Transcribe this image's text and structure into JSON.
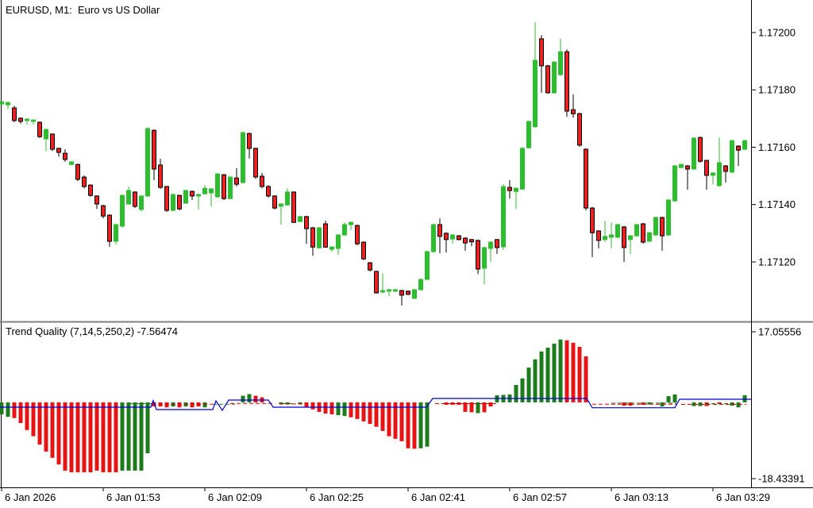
{
  "colors": {
    "background": "#FFFFFF",
    "candle_up": "#2DBE2D",
    "candle_down": "#E62222",
    "candle_border": "#000000",
    "wick_down": "#000000",
    "hist_up": "#1C7C1C",
    "hist_down": "#E61414",
    "line_blue": "#0000D8",
    "line_red": "#DD0000",
    "line_green": "#1C7C1C",
    "axis": "#000000",
    "separator": "#808080"
  },
  "chart_data": [
    {
      "type": "candlestick",
      "title": "EURUSD, M1:  Euro vs US Dollar",
      "symbol": "EURUSD",
      "timeframe": "M1",
      "description": "Euro vs US Dollar",
      "y_ticks": [
        "1.17200",
        "1.17180",
        "1.17160",
        "1.17140",
        "1.17120"
      ],
      "x_labels": [
        "6 Jan 2026",
        "6 Jan 01:53",
        "6 Jan 02:09",
        "6 Jan 02:25",
        "6 Jan 02:41",
        "6 Jan 02:57",
        "6 Jan 03:13",
        "6 Jan 03:29"
      ],
      "grid": false,
      "candles": [
        [
          1.171751,
          1.171762,
          1.171745,
          1.171759
        ],
        [
          1.171748,
          1.171759,
          1.171734,
          1.171756
        ],
        [
          1.171737,
          1.171745,
          1.171687,
          1.171693
        ],
        [
          1.171701,
          1.171704,
          1.171682,
          1.17169
        ],
        [
          1.171693,
          1.171701,
          1.171679,
          1.171698
        ],
        [
          1.17169,
          1.171698,
          1.171679,
          1.171695
        ],
        [
          1.171687,
          1.17169,
          1.171632,
          1.171637
        ],
        [
          1.171629,
          1.171665,
          1.171587,
          1.171662
        ],
        [
          1.171646,
          1.171648,
          1.171587,
          1.171593
        ],
        [
          1.171596,
          1.171598,
          1.171568,
          1.171582
        ],
        [
          1.171579,
          1.171593,
          1.171549,
          1.171557
        ],
        [
          1.17154,
          1.171551,
          1.171537,
          1.171549
        ],
        [
          1.17154,
          1.171543,
          1.171482,
          1.171488
        ],
        [
          1.171496,
          1.171502,
          1.171457,
          1.171463
        ],
        [
          1.171468,
          1.171471,
          1.171427,
          1.171432
        ],
        [
          1.17143,
          1.171432,
          1.171385,
          1.171402
        ],
        [
          1.171396,
          1.171399,
          1.171352,
          1.17136
        ],
        [
          1.171363,
          1.171366,
          1.171253,
          1.171272
        ],
        [
          1.171272,
          1.171333,
          1.171261,
          1.17133
        ],
        [
          1.171325,
          1.171435,
          1.17132,
          1.171432
        ],
        [
          1.171402,
          1.171463,
          1.171399,
          1.171449
        ],
        [
          1.171444,
          1.171446,
          1.171388,
          1.171394
        ],
        [
          1.171383,
          1.171432,
          1.171377,
          1.17143
        ],
        [
          1.17143,
          1.17167,
          1.171427,
          1.171665
        ],
        [
          1.171659,
          1.171662,
          1.171485,
          1.171524
        ],
        [
          1.171538,
          1.17156,
          1.171455,
          1.17146
        ],
        [
          1.171463,
          1.171465,
          1.171374,
          1.17138
        ],
        [
          1.17138,
          1.171438,
          1.171377,
          1.171435
        ],
        [
          1.171432,
          1.171435,
          1.17138,
          1.171385
        ],
        [
          1.171405,
          1.171452,
          1.171402,
          1.171449
        ],
        [
          1.171446,
          1.171449,
          1.171416,
          1.17143
        ],
        [
          1.17143,
          1.171438,
          1.171383,
          1.171435
        ],
        [
          1.171438,
          1.171468,
          1.171435,
          1.171457
        ],
        [
          1.171441,
          1.171457,
          1.171394,
          1.171455
        ],
        [
          1.171427,
          1.17151,
          1.171424,
          1.171507
        ],
        [
          1.171504,
          1.171507,
          1.171416,
          1.171421
        ],
        [
          1.171421,
          1.171499,
          1.171419,
          1.171496
        ],
        [
          1.171493,
          1.171527,
          1.171463,
          1.171471
        ],
        [
          1.171477,
          1.171654,
          1.171474,
          1.171651
        ],
        [
          1.171648,
          1.171651,
          1.17156,
          1.171596
        ],
        [
          1.171596,
          1.171598,
          1.17149,
          1.171496
        ],
        [
          1.171499,
          1.17151,
          1.171457,
          1.171463
        ],
        [
          1.171463,
          1.171468,
          1.171424,
          1.17143
        ],
        [
          1.17143,
          1.171432,
          1.171383,
          1.171388
        ],
        [
          1.171394,
          1.171405,
          1.17133,
          1.171402
        ],
        [
          1.171399,
          1.171457,
          1.171396,
          1.171444
        ],
        [
          1.171444,
          1.171446,
          1.171336,
          1.171338
        ],
        [
          1.171341,
          1.171361,
          1.171338,
          1.171358
        ],
        [
          1.171358,
          1.171361,
          1.171263,
          1.171316
        ],
        [
          1.171319,
          1.171322,
          1.171222,
          1.171252
        ],
        [
          1.171249,
          1.171322,
          1.171247,
          1.171319
        ],
        [
          1.171333,
          1.171344,
          1.171249,
          1.171252
        ],
        [
          1.171244,
          1.171255,
          1.171236,
          1.171252
        ],
        [
          1.171247,
          1.171297,
          1.171225,
          1.171294
        ],
        [
          1.171294,
          1.171338,
          1.171291,
          1.17133
        ],
        [
          1.17133,
          1.171341,
          1.171311,
          1.171338
        ],
        [
          1.171327,
          1.17133,
          1.171258,
          1.171263
        ],
        [
          1.171269,
          1.171272,
          1.171206,
          1.171211
        ],
        [
          1.171197,
          1.1712,
          1.171167,
          1.171172
        ],
        [
          1.171167,
          1.171169,
          1.17109,
          1.171092
        ],
        [
          1.171095,
          1.171161,
          1.17109,
          1.1711
        ],
        [
          1.171098,
          1.171106,
          1.171081,
          1.171103
        ],
        [
          1.171098,
          1.171106,
          1.171095,
          1.171103
        ],
        [
          1.1711,
          1.171103,
          1.171048,
          1.171084
        ],
        [
          1.171098,
          1.1711,
          1.171084,
          1.171087
        ],
        [
          1.171073,
          1.171106,
          1.17107,
          1.171103
        ],
        [
          1.171103,
          1.171142,
          1.1711,
          1.171139
        ],
        [
          1.171139,
          1.171239,
          1.171136,
          1.171236
        ],
        [
          1.171236,
          1.171333,
          1.171233,
          1.17133
        ],
        [
          1.17133,
          1.171352,
          1.17123,
          1.171289
        ],
        [
          1.1713,
          1.171303,
          1.171233,
          1.171278
        ],
        [
          1.17128,
          1.171297,
          1.171264,
          1.171294
        ],
        [
          1.171291,
          1.171294,
          1.171275,
          1.171278
        ],
        [
          1.171283,
          1.171286,
          1.171239,
          1.171266
        ],
        [
          1.171278,
          1.17128,
          1.171255,
          1.17127
        ],
        [
          1.171275,
          1.171278,
          1.171158,
          1.171175
        ],
        [
          1.171178,
          1.171253,
          1.171122,
          1.17125
        ],
        [
          1.171247,
          1.171272,
          1.1712,
          1.171269
        ],
        [
          1.171278,
          1.17128,
          1.171228,
          1.17125
        ],
        [
          1.171253,
          1.171471,
          1.171242,
          1.171463
        ],
        [
          1.17146,
          1.171485,
          1.171421,
          1.171449
        ],
        [
          1.171446,
          1.17146,
          1.171385,
          1.171457
        ],
        [
          1.171454,
          1.171601,
          1.171452,
          1.171596
        ],
        [
          1.171598,
          1.171693,
          1.171596,
          1.17169
        ],
        [
          1.171671,
          1.172036,
          1.171668,
          1.171903
        ],
        [
          1.171978,
          1.171991,
          1.17179,
          1.171884
        ],
        [
          1.171884,
          1.171887,
          1.171787,
          1.17179
        ],
        [
          1.17179,
          1.1719,
          1.171787,
          1.171897
        ],
        [
          1.171853,
          1.171978,
          1.17185,
          1.171933
        ],
        [
          1.171933,
          1.171941,
          1.171706,
          1.171726
        ],
        [
          1.171731,
          1.171784,
          1.171703,
          1.171717
        ],
        [
          1.171717,
          1.17172,
          1.171601,
          1.171607
        ],
        [
          1.171593,
          1.171596,
          1.17138,
          1.171388
        ],
        [
          1.171388,
          1.171391,
          1.171217,
          1.171302
        ],
        [
          1.171308,
          1.171311,
          1.171247,
          1.171275
        ],
        [
          1.171278,
          1.171344,
          1.17127,
          1.171289
        ],
        [
          1.171286,
          1.171338,
          1.171247,
          1.171294
        ],
        [
          1.171286,
          1.171333,
          1.171283,
          1.17133
        ],
        [
          1.171322,
          1.171325,
          1.1712,
          1.17125
        ],
        [
          1.171278,
          1.171294,
          1.171228,
          1.171291
        ],
        [
          1.171291,
          1.171333,
          1.171289,
          1.17133
        ],
        [
          1.171333,
          1.171336,
          1.171264,
          1.171269
        ],
        [
          1.171272,
          1.171305,
          1.17127,
          1.171302
        ],
        [
          1.171294,
          1.171358,
          1.171291,
          1.171355
        ],
        [
          1.171355,
          1.171358,
          1.171239,
          1.171291
        ],
        [
          1.171294,
          1.171419,
          1.171291,
          1.171416
        ],
        [
          1.171413,
          1.171538,
          1.17141,
          1.171535
        ],
        [
          1.171529,
          1.171543,
          1.171527,
          1.17154
        ],
        [
          1.171535,
          1.171538,
          1.171452,
          1.171524
        ],
        [
          1.171524,
          1.171634,
          1.171521,
          1.171632
        ],
        [
          1.171634,
          1.171637,
          1.171546,
          1.171551
        ],
        [
          1.171554,
          1.171556,
          1.171452,
          1.171502
        ],
        [
          1.171502,
          1.171513,
          1.171471,
          1.17151
        ],
        [
          1.171466,
          1.171634,
          1.171463,
          1.171546
        ],
        [
          1.171535,
          1.171538,
          1.171477,
          1.171516
        ],
        [
          1.171513,
          1.171626,
          1.17151,
          1.171623
        ],
        [
          1.171604,
          1.171607,
          1.171535,
          1.17159
        ],
        [
          1.171593,
          1.171626,
          1.17159,
          1.171623
        ]
      ]
    },
    {
      "type": "bar",
      "title": "Trend Quality (7,14,5,250,2) -7.56474",
      "indicator": "Trend Quality",
      "params": "7,14,5,250,2",
      "value": "-7.56474",
      "max_label": "17.05556",
      "min_label": "-18.43391",
      "ylim": [
        -18.43391,
        17.05556
      ],
      "values": [
        -2.9,
        -3.5,
        -3.8,
        -5,
        -6.7,
        -8.2,
        -10.2,
        -11.9,
        -13.4,
        -15,
        -16.5,
        -16.9,
        -16.9,
        -16.9,
        -16.9,
        -16.5,
        -16.9,
        -16.9,
        -16.9,
        -16.5,
        -16.5,
        -16.5,
        -16.5,
        -12.3,
        -1,
        -1,
        -1.2,
        -1,
        -1.2,
        -1,
        -1.2,
        -1,
        -1.2,
        0,
        0,
        0,
        0,
        0,
        1.6,
        2,
        1.6,
        1.2,
        0,
        0,
        -0.5,
        -0.4,
        0,
        -0.4,
        -1.2,
        -1.7,
        -2.3,
        -2.7,
        -2.9,
        -3.1,
        -3.3,
        -3.6,
        -4,
        -4.6,
        -5.2,
        -5.9,
        -6.9,
        -8.2,
        -8.8,
        -9.4,
        -11.1,
        -11.2,
        -11.1,
        -10.7,
        0,
        0,
        -0.6,
        -0.6,
        -0.6,
        -2.3,
        -2.4,
        -2.6,
        -2.4,
        -1,
        1.7,
        1.8,
        1.9,
        4.2,
        5.8,
        8.4,
        10.4,
        12.3,
        13.2,
        14.2,
        15.2,
        15,
        14.4,
        13.4,
        11.1,
        0,
        0,
        0,
        0,
        0,
        -0.8,
        -0.8,
        0,
        -0.6,
        -0.5,
        0,
        -1,
        1.5,
        1.9,
        0,
        0,
        -0.9,
        -0.9,
        -0.9,
        0,
        -0.4,
        0,
        -0.8,
        -1.2,
        1.7
      ],
      "colors": [
        "g",
        "g",
        "r",
        "r",
        "r",
        "r",
        "r",
        "r",
        "r",
        "r",
        "r",
        "r",
        "r",
        "r",
        "r",
        "r",
        "r",
        "r",
        "r",
        "g",
        "g",
        "g",
        "g",
        "g",
        "r",
        "r",
        "r",
        "g",
        "r",
        "g",
        "r",
        "r",
        "g",
        "n",
        "n",
        "n",
        "n",
        "n",
        "g",
        "g",
        "r",
        "r",
        "n",
        "n",
        "g",
        "g",
        "n",
        "g",
        "r",
        "r",
        "r",
        "r",
        "r",
        "g",
        "g",
        "r",
        "r",
        "r",
        "r",
        "r",
        "r",
        "r",
        "r",
        "r",
        "r",
        "r",
        "g",
        "g",
        "n",
        "n",
        "r",
        "r",
        "r",
        "r",
        "r",
        "g",
        "r",
        "r",
        "g",
        "g",
        "g",
        "g",
        "g",
        "g",
        "g",
        "g",
        "g",
        "g",
        "g",
        "r",
        "r",
        "r",
        "r",
        "n",
        "n",
        "n",
        "n",
        "n",
        "r",
        "r",
        "n",
        "r",
        "g",
        "n",
        "g",
        "g",
        "g",
        "n",
        "n",
        "g",
        "g",
        "r",
        "n",
        "r",
        "n",
        "g",
        "g",
        "g"
      ],
      "blue_line": [
        [
          0,
          -1.17
        ],
        [
          190,
          -1.17
        ],
        [
          193,
          0.45
        ],
        [
          197,
          -1.75
        ],
        [
          268,
          -1.75
        ],
        [
          272,
          0.36
        ],
        [
          280,
          -1.94
        ],
        [
          288,
          0.56
        ],
        [
          338,
          0.56
        ],
        [
          344,
          -1.17
        ],
        [
          537,
          -1.17
        ],
        [
          545,
          0.94
        ],
        [
          739,
          0.94
        ],
        [
          746,
          -1.3
        ],
        [
          850,
          -1.3
        ],
        [
          856,
          0.75
        ],
        [
          946,
          0.75
        ]
      ],
      "red_dashed": [
        [
          200,
          268,
          -0.45
        ],
        [
          290,
          344,
          -0.25
        ],
        [
          352,
          386,
          -0.4
        ],
        [
          548,
          628,
          -0.3
        ],
        [
          746,
          852,
          -0.45
        ],
        [
          858,
          940,
          -0.5
        ]
      ],
      "green_dashed": [
        [
          162,
          196,
          -0.3
        ],
        [
          268,
          296,
          -0.45
        ],
        [
          356,
          372,
          -0.3
        ],
        [
          770,
          852,
          -0.2
        ],
        [
          888,
          926,
          -0.3
        ]
      ]
    }
  ]
}
